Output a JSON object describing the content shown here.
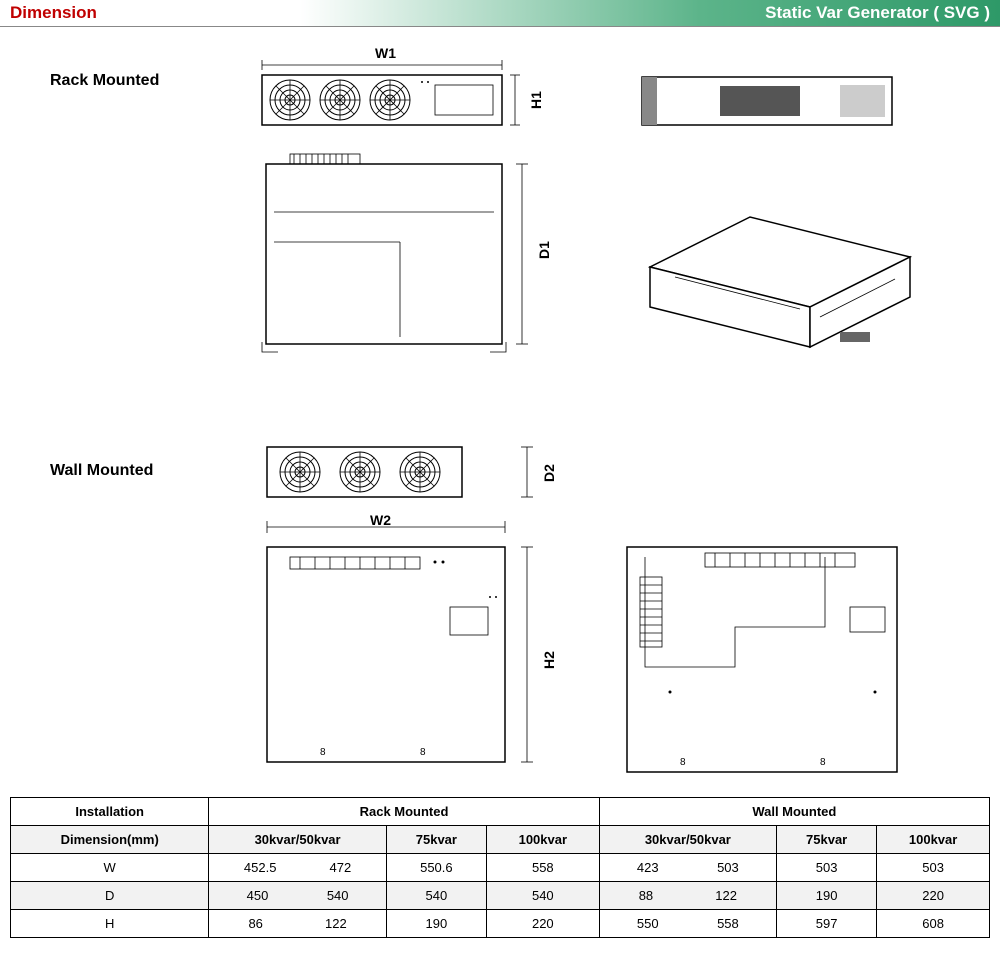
{
  "header": {
    "left": "Dimension",
    "right": "Static Var Generator ( SVG )",
    "left_color": "#c00000"
  },
  "sections": {
    "rack": "Rack Mounted",
    "wall": "Wall Mounted"
  },
  "dim_labels": {
    "W1": "W1",
    "H1": "H1",
    "D1": "D1",
    "W2": "W2",
    "H2": "H2",
    "D2": "D2"
  },
  "table": {
    "header_install": "Installation",
    "header_rack": "Rack Mounted",
    "header_wall": "Wall Mounted",
    "header_dim": "Dimension(mm)",
    "cols": [
      "30kvar/50kvar",
      "75kvar",
      "100kvar",
      "30kvar/50kvar",
      "75kvar",
      "100kvar"
    ],
    "rows": [
      {
        "label": "W",
        "cells": [
          [
            "452.5",
            "472"
          ],
          "550.6",
          "558",
          [
            "423",
            "503"
          ],
          "503",
          "503"
        ]
      },
      {
        "label": "D",
        "cells": [
          [
            "450",
            "540"
          ],
          "540",
          "540",
          [
            "88",
            "122"
          ],
          "190",
          "220"
        ]
      },
      {
        "label": "H",
        "cells": [
          [
            "86",
            "122"
          ],
          "190",
          "220",
          [
            "550",
            "558"
          ],
          "597",
          "608"
        ]
      }
    ],
    "gray_rows": [
      0,
      2
    ]
  },
  "colors": {
    "header_gradient_start": "#ffffff",
    "header_gradient_end": "#2e9968",
    "table_gray": "#f2f2f2"
  }
}
